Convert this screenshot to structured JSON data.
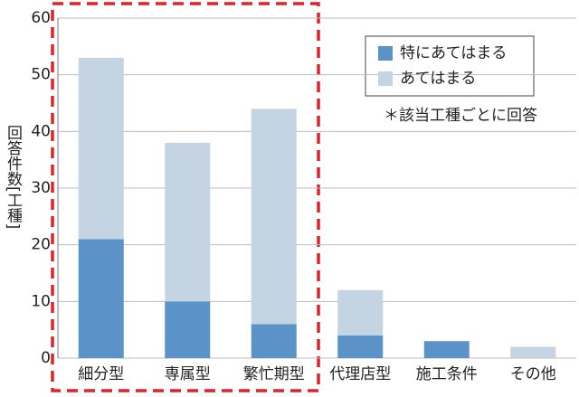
{
  "chart_data": {
    "type": "stacked_bar",
    "y_label": "回答件数[工種]",
    "annotation": "＊該当工種ごとに回答",
    "categories": [
      "細分型",
      "専属型",
      "繁忙期型",
      "代理店型",
      "施工条件",
      "その他"
    ],
    "series": [
      {
        "name": "特にあてはまる",
        "color": "#5b93c9",
        "values": [
          21,
          10,
          6,
          4,
          3,
          0
        ]
      },
      {
        "name": "あてはまる",
        "color": "#c5d4e2",
        "values": [
          32,
          28,
          38,
          8,
          0,
          2
        ]
      }
    ],
    "ylim": [
      0,
      60
    ],
    "yticks": [
      0,
      10,
      20,
      30,
      40,
      50,
      60
    ],
    "grid": true
  }
}
